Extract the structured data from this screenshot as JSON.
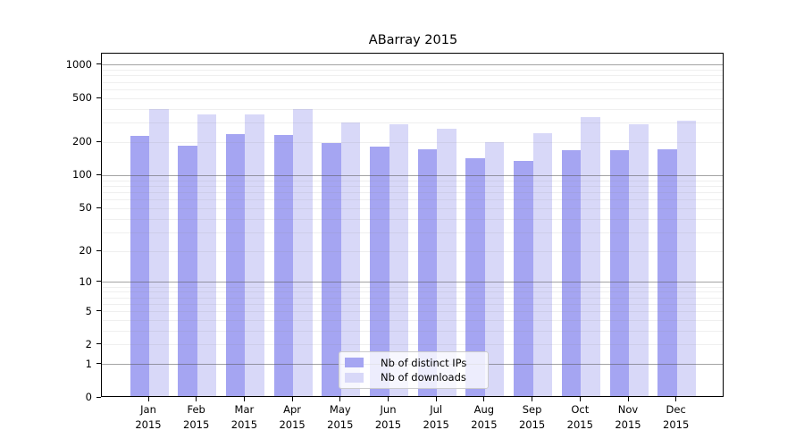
{
  "title": "ABarray 2015",
  "chart_data": {
    "type": "bar",
    "title": "ABarray 2015",
    "categories": [
      "Jan",
      "Feb",
      "Mar",
      "Apr",
      "May",
      "Jun",
      "Jul",
      "Aug",
      "Sep",
      "Oct",
      "Nov",
      "Dec"
    ],
    "category_year": "2015",
    "series": [
      {
        "name": "Nb of distinct IPs",
        "slug": "distinct-ips",
        "color": "#a5a5f2",
        "values": [
          220,
          181,
          230,
          227,
          192,
          177,
          167,
          140,
          130,
          164,
          165,
          168
        ]
      },
      {
        "name": "Nb of downloads",
        "slug": "downloads",
        "color": "#d8d8f8",
        "values": [
          386,
          345,
          347,
          386,
          290,
          281,
          256,
          196,
          234,
          329,
          281,
          303
        ]
      }
    ],
    "yscale": "log10(1+y)",
    "ytick_labels": [
      "0",
      "1",
      "2",
      "5",
      "10",
      "20",
      "50",
      "100",
      "200",
      "500",
      "1000"
    ],
    "yticks": [
      0,
      1,
      2,
      5,
      10,
      20,
      50,
      100,
      200,
      500,
      1000
    ],
    "major_gridlines": [
      1,
      10,
      100,
      1000
    ],
    "minor_gridlines": [
      3,
      4,
      6,
      7,
      8,
      9,
      30,
      40,
      60,
      70,
      80,
      90,
      300,
      400,
      600,
      700,
      800,
      900
    ],
    "ylim": [
      0,
      1280
    ],
    "grid": true,
    "legend_position": "lower center",
    "legend_labels": [
      "Nb of distinct IPs",
      "Nb of downloads"
    ]
  },
  "colors": {
    "bar_distinct_ips": "#a5a5f2",
    "bar_downloads": "#d8d8f8",
    "major_grid": "#a4a4a4",
    "minor_grid": "#eeeeee",
    "axis": "#000000",
    "legend_border": "#cccccc"
  }
}
